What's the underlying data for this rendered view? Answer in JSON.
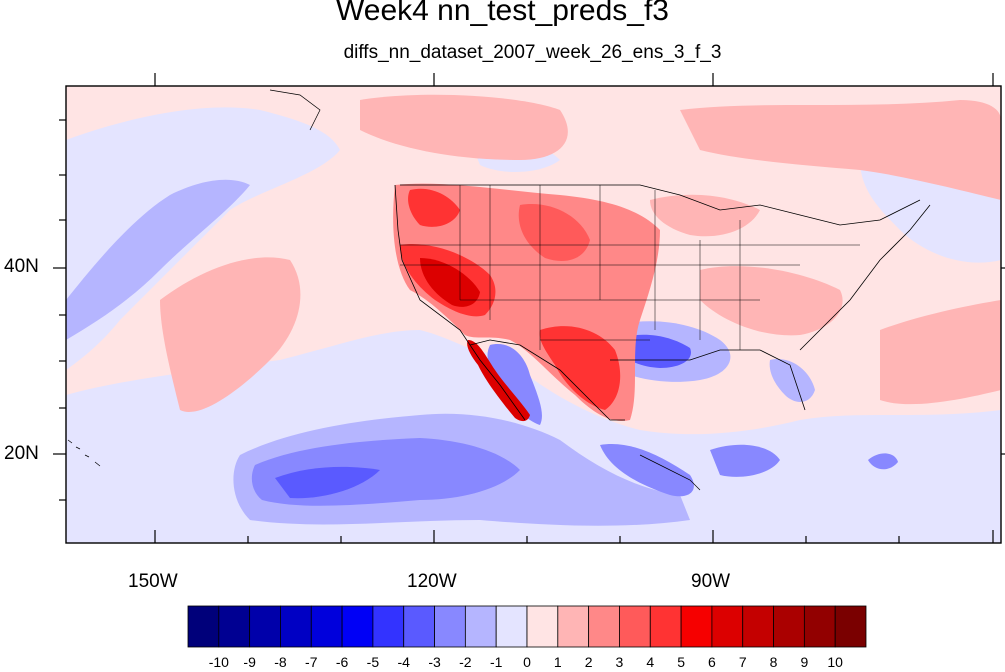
{
  "title": "Week4 nn_test_preds_f3",
  "subtitle": "diffs_nn_dataset_2007_week_26_ens_3_f_3",
  "axes": {
    "lat_labels": [
      "40N",
      "20N"
    ],
    "lon_labels": [
      "150W",
      "120W",
      "90W"
    ]
  },
  "colorbar": {
    "labels": [
      "-10",
      "-9",
      "-8",
      "-7",
      "-6",
      "-5",
      "-4",
      "-3",
      "-2",
      "-1",
      "0",
      "1",
      "2",
      "3",
      "4",
      "5",
      "6",
      "7",
      "8",
      "9",
      "10"
    ],
    "colors": [
      "#00007a",
      "#000092",
      "#0000aa",
      "#0000c4",
      "#0000dc",
      "#0000f6",
      "#3333ff",
      "#5a5aff",
      "#8888ff",
      "#b5b5ff",
      "#e4e4ff",
      "#ffe4e4",
      "#ffb5b5",
      "#ff8888",
      "#ff5a5a",
      "#ff3333",
      "#f60000",
      "#dc0000",
      "#c40000",
      "#aa0000",
      "#920000",
      "#7a0000"
    ]
  },
  "map": {
    "background": "#ffe4e4"
  }
}
